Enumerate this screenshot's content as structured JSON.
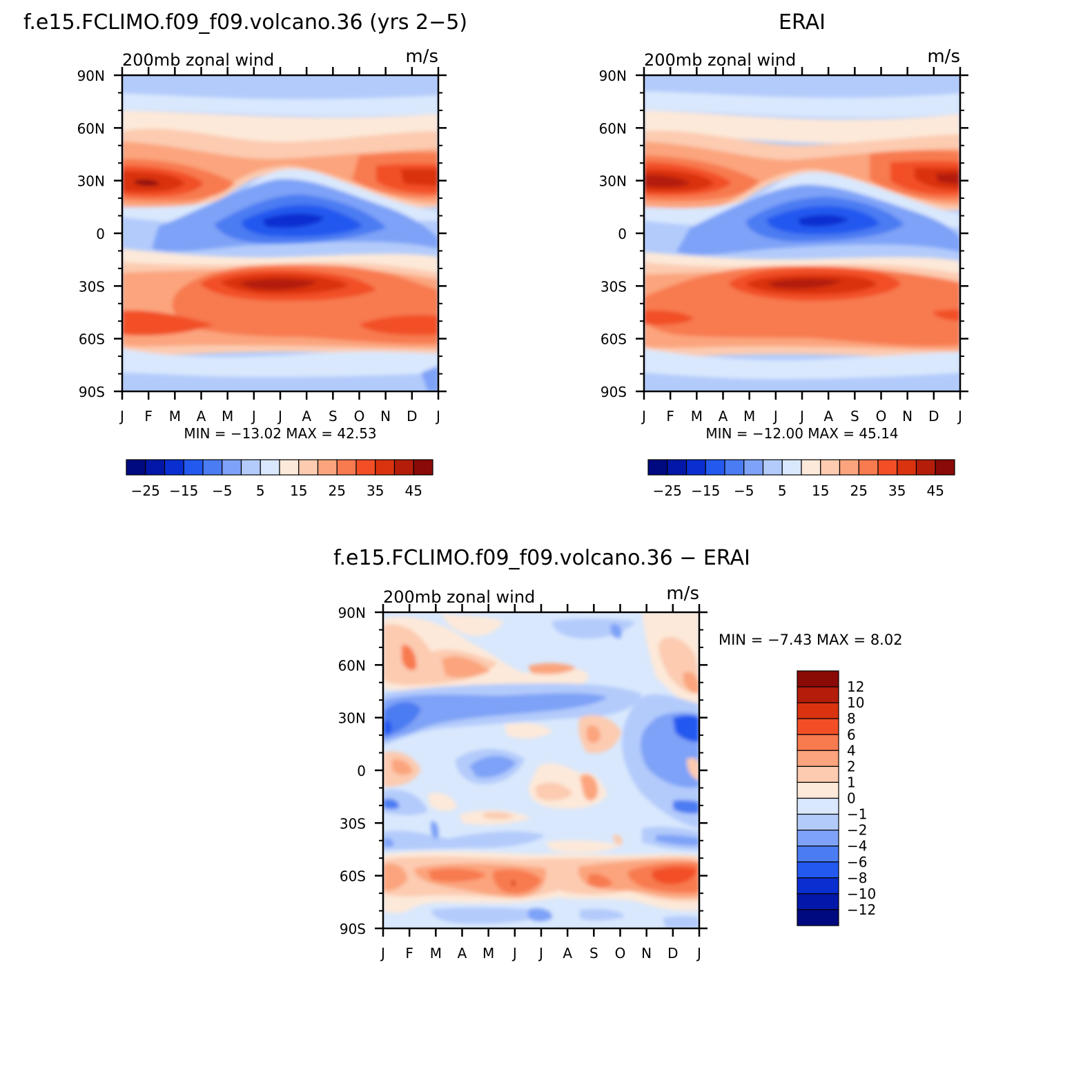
{
  "figure": {
    "panels": [
      {
        "title": "f.e15.FCLIMO.f09_f09.volcano.36 (yrs 2−5)",
        "left_label": "200mb  zonal  wind",
        "right_label": "m/s",
        "stats": "MIN  =  −13.02  MAX  =   42.53"
      },
      {
        "title": "ERAI",
        "left_label": "200mb  zonal  wind",
        "right_label": "m/s",
        "stats": "MIN  =  −12.00  MAX  =   45.14"
      },
      {
        "title": "f.e15.FCLIMO.f09_f09.volcano.36  −  ERAI",
        "left_label": "200mb  zonal  wind",
        "right_label": "m/s",
        "stats": "MIN  =    −7.43  MAX  =    8.02"
      }
    ]
  },
  "chart_data": [
    {
      "type": "heatmap",
      "title": "f.e15.FCLIMO.f09_f09.volcano.36 (yrs 2−5)",
      "subtitle": "200mb  zonal  wind",
      "units": "m/s",
      "x_ticks": [
        "J",
        "F",
        "M",
        "A",
        "M",
        "J",
        "J",
        "A",
        "S",
        "O",
        "N",
        "D",
        "J"
      ],
      "y_ticks": [
        "90N",
        "60N",
        "30N",
        "0",
        "30S",
        "60S",
        "90S"
      ],
      "colorbar_levels": [
        -30,
        -25,
        -20,
        -15,
        -10,
        -5,
        0,
        5,
        10,
        15,
        20,
        25,
        30,
        35,
        40,
        45
      ],
      "colorbar_labels": [
        "−25",
        "−15",
        "−5",
        "5",
        "15",
        "25",
        "35",
        "45"
      ],
      "colors": [
        "#000a80",
        "#0318a8",
        "#0a2fd0",
        "#2459ef",
        "#4b7cf2",
        "#7ea2f7",
        "#b3cbfb",
        "#d9e8fd",
        "#fde9d9",
        "#fccbb0",
        "#fba47d",
        "#f87a4f",
        "#f24f26",
        "#d93310",
        "#b31d0a",
        "#8a0a07"
      ],
      "min": -13.02,
      "max": 42.53
    },
    {
      "type": "heatmap",
      "title": "ERAI",
      "subtitle": "200mb  zonal  wind",
      "units": "m/s",
      "x_ticks": [
        "J",
        "F",
        "M",
        "A",
        "M",
        "J",
        "J",
        "A",
        "S",
        "O",
        "N",
        "D",
        "J"
      ],
      "y_ticks": [
        "90N",
        "60N",
        "30N",
        "0",
        "30S",
        "60S",
        "90S"
      ],
      "colorbar_levels": [
        -30,
        -25,
        -20,
        -15,
        -10,
        -5,
        0,
        5,
        10,
        15,
        20,
        25,
        30,
        35,
        40,
        45
      ],
      "colorbar_labels": [
        "−25",
        "−15",
        "−5",
        "5",
        "15",
        "25",
        "35",
        "45"
      ],
      "colors": [
        "#000a80",
        "#0318a8",
        "#0a2fd0",
        "#2459ef",
        "#4b7cf2",
        "#7ea2f7",
        "#b3cbfb",
        "#d9e8fd",
        "#fde9d9",
        "#fccbb0",
        "#fba47d",
        "#f87a4f",
        "#f24f26",
        "#d93310",
        "#b31d0a",
        "#8a0a07"
      ],
      "min": -12.0,
      "max": 45.14
    },
    {
      "type": "heatmap",
      "title": "f.e15.FCLIMO.f09_f09.volcano.36  −  ERAI",
      "subtitle": "200mb  zonal  wind",
      "units": "m/s",
      "x_ticks": [
        "J",
        "F",
        "M",
        "A",
        "M",
        "J",
        "J",
        "A",
        "S",
        "O",
        "N",
        "D",
        "J"
      ],
      "y_ticks": [
        "90N",
        "60N",
        "30N",
        "0",
        "30S",
        "60S",
        "90S"
      ],
      "colorbar_levels": [
        12,
        10,
        8,
        6,
        4,
        2,
        1,
        0,
        -1,
        -2,
        -4,
        -6,
        -8,
        -10,
        -12
      ],
      "colorbar_labels": [
        "12",
        "10",
        "8",
        "6",
        "4",
        "2",
        "1",
        "0",
        "−1",
        "−2",
        "−4",
        "−6",
        "−8",
        "−10",
        "−12"
      ],
      "colors": [
        "#8a0a07",
        "#b31d0a",
        "#d93310",
        "#f24f26",
        "#f87a4f",
        "#fba47d",
        "#fccbb0",
        "#fde9d9",
        "#d9e8fd",
        "#b3cbfb",
        "#7ea2f7",
        "#4b7cf2",
        "#2459ef",
        "#0a2fd0",
        "#0318a8",
        "#000a80"
      ],
      "min": -7.43,
      "max": 8.02
    }
  ]
}
